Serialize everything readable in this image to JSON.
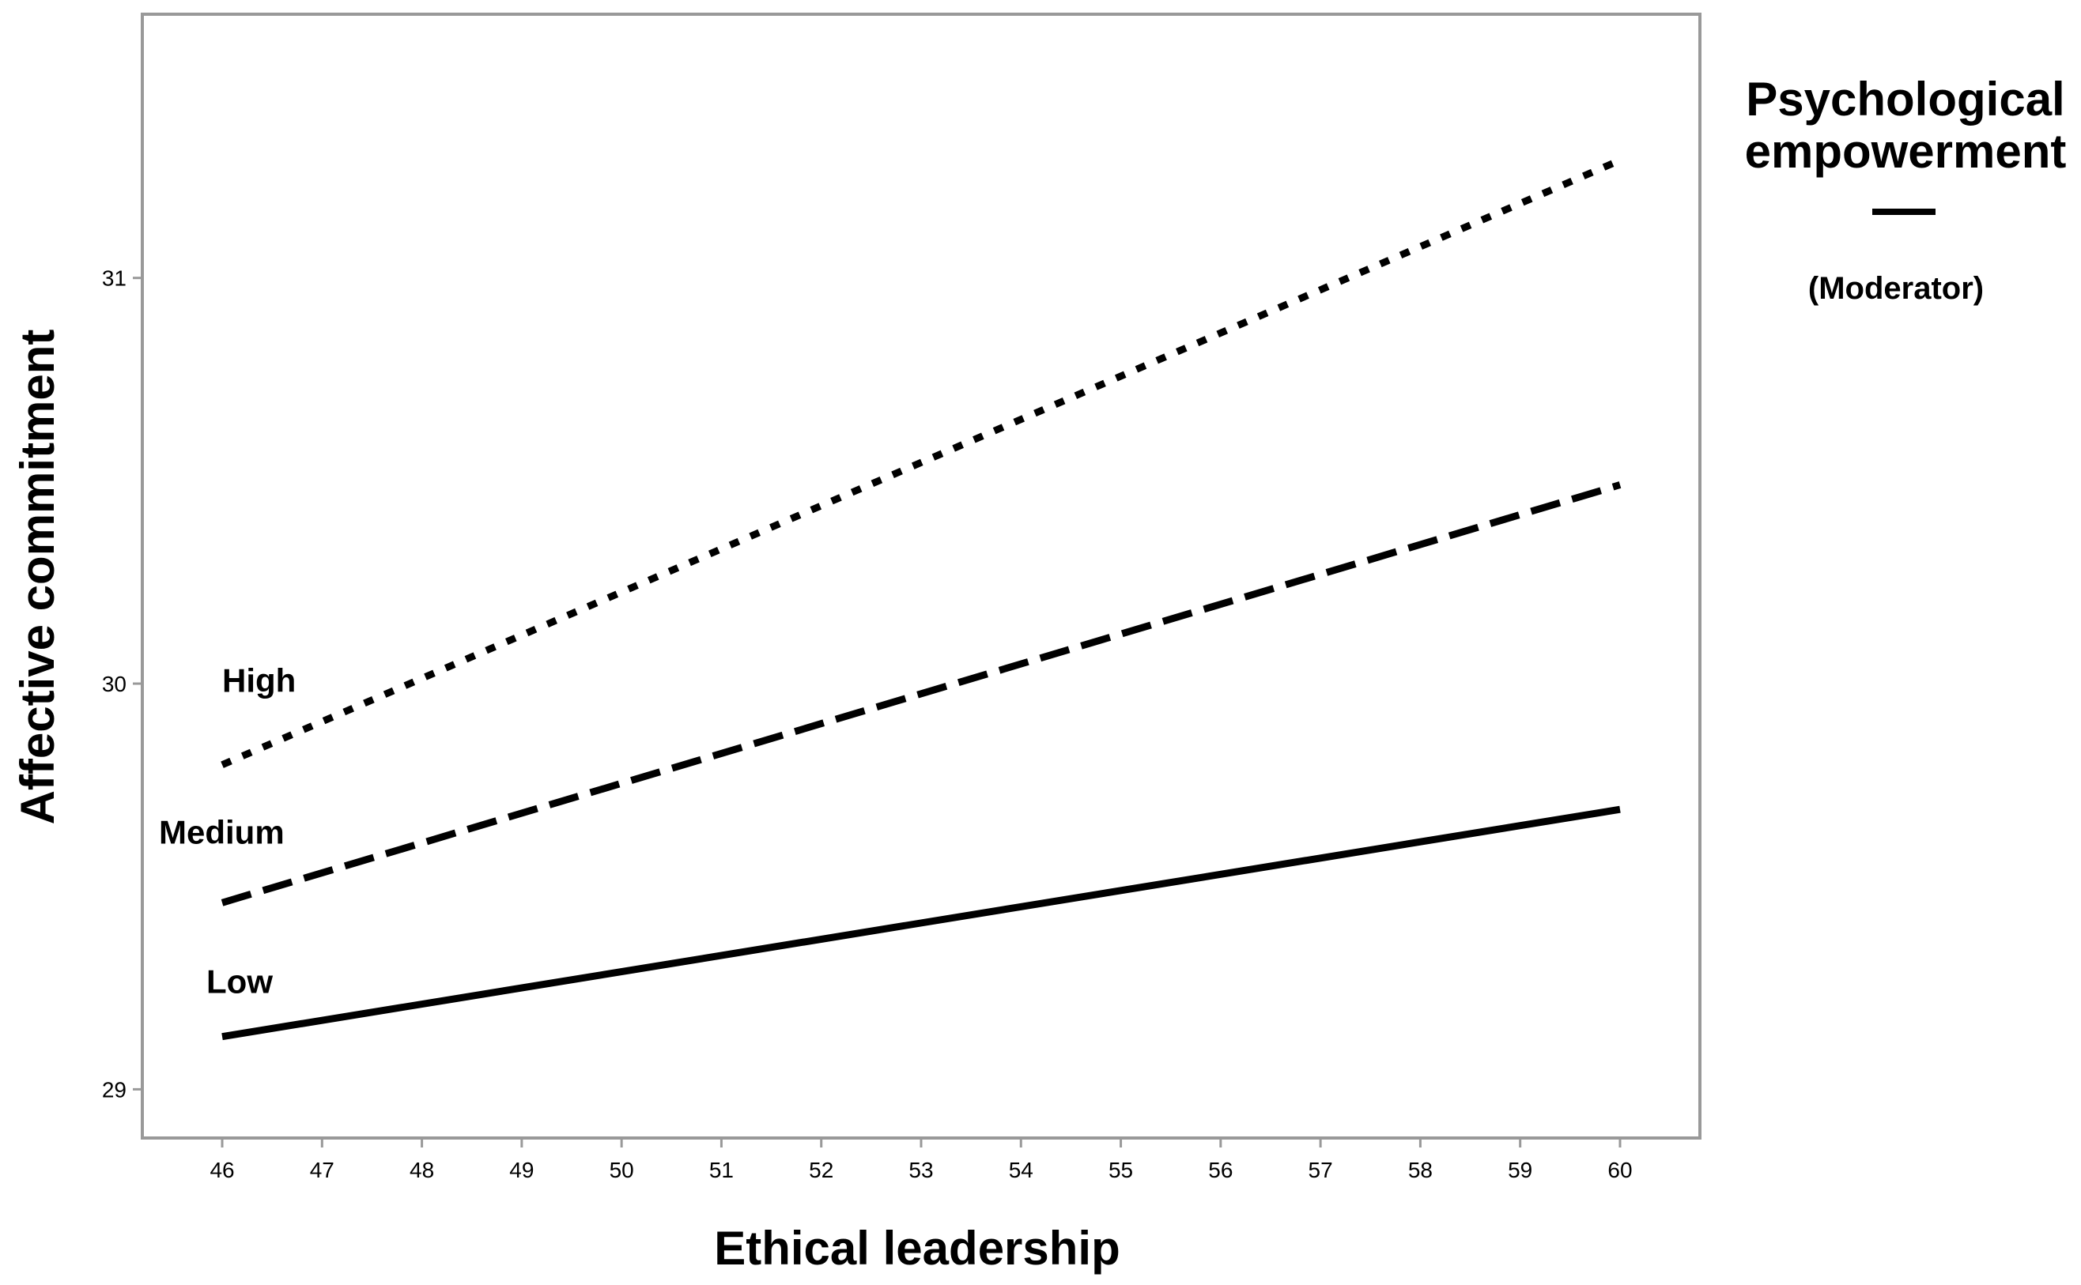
{
  "chart_data": {
    "type": "line",
    "xlabel": "Ethical leadership",
    "ylabel": "Affective commitment",
    "xlim": [
      45.2,
      60.8
    ],
    "ylim": [
      28.88,
      31.65
    ],
    "x_ticks": [
      46,
      47,
      48,
      49,
      50,
      51,
      52,
      53,
      54,
      55,
      56,
      57,
      58,
      59,
      60
    ],
    "y_ticks": [
      29,
      30,
      31
    ],
    "grid": false,
    "legend": {
      "title_lines": [
        "Psychological",
        "empowerment"
      ],
      "subtitle": "(Moderator)",
      "placement": "right"
    },
    "series": [
      {
        "name": "High",
        "x": [
          46,
          60
        ],
        "values": [
          29.8,
          31.29
        ],
        "style": "dotted"
      },
      {
        "name": "Medium",
        "x": [
          46,
          60
        ],
        "values": [
          29.46,
          30.49
        ],
        "style": "dashed"
      },
      {
        "name": "Low",
        "x": [
          46,
          60
        ],
        "values": [
          29.13,
          29.69
        ],
        "style": "solid"
      }
    ]
  }
}
